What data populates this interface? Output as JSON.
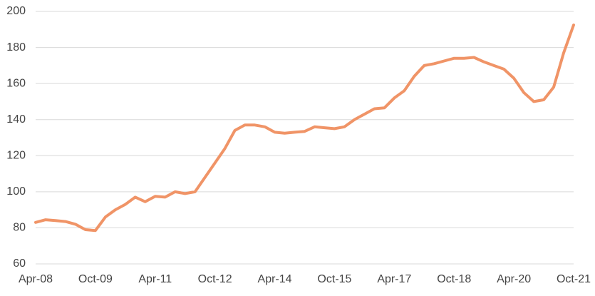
{
  "chart_data": {
    "type": "line",
    "categories": [
      "Apr-08",
      null,
      null,
      null,
      null,
      null,
      "Oct-09",
      null,
      null,
      null,
      null,
      null,
      "Apr-11",
      null,
      null,
      null,
      null,
      null,
      "Oct-12",
      null,
      null,
      null,
      null,
      null,
      "Apr-14",
      null,
      null,
      null,
      null,
      null,
      "Oct-15",
      null,
      null,
      null,
      null,
      null,
      "Apr-17",
      null,
      null,
      null,
      null,
      null,
      "Oct-18",
      null,
      null,
      null,
      null,
      null,
      "Apr-20",
      null,
      null,
      null,
      null,
      null,
      "Oct-21"
    ],
    "series": [
      {
        "color": "#f09467",
        "values": [
          83,
          84.5,
          84,
          83.5,
          82,
          79,
          78.5,
          86,
          90,
          93,
          97,
          94.5,
          97.5,
          97,
          100,
          99,
          100,
          108,
          116,
          124,
          134,
          137,
          137,
          136,
          133,
          132.5,
          133,
          133.5,
          136,
          135.5,
          135,
          136,
          140,
          143,
          146,
          146.5,
          152,
          156,
          164,
          170,
          171,
          172.5,
          174,
          174,
          174.5,
          172,
          170,
          168,
          163,
          155,
          150,
          151,
          158,
          177,
          192.5
        ]
      }
    ],
    "ylim": [
      60,
      200
    ],
    "yticks": [
      60,
      80,
      100,
      120,
      140,
      160,
      180,
      200
    ],
    "grid": true
  }
}
